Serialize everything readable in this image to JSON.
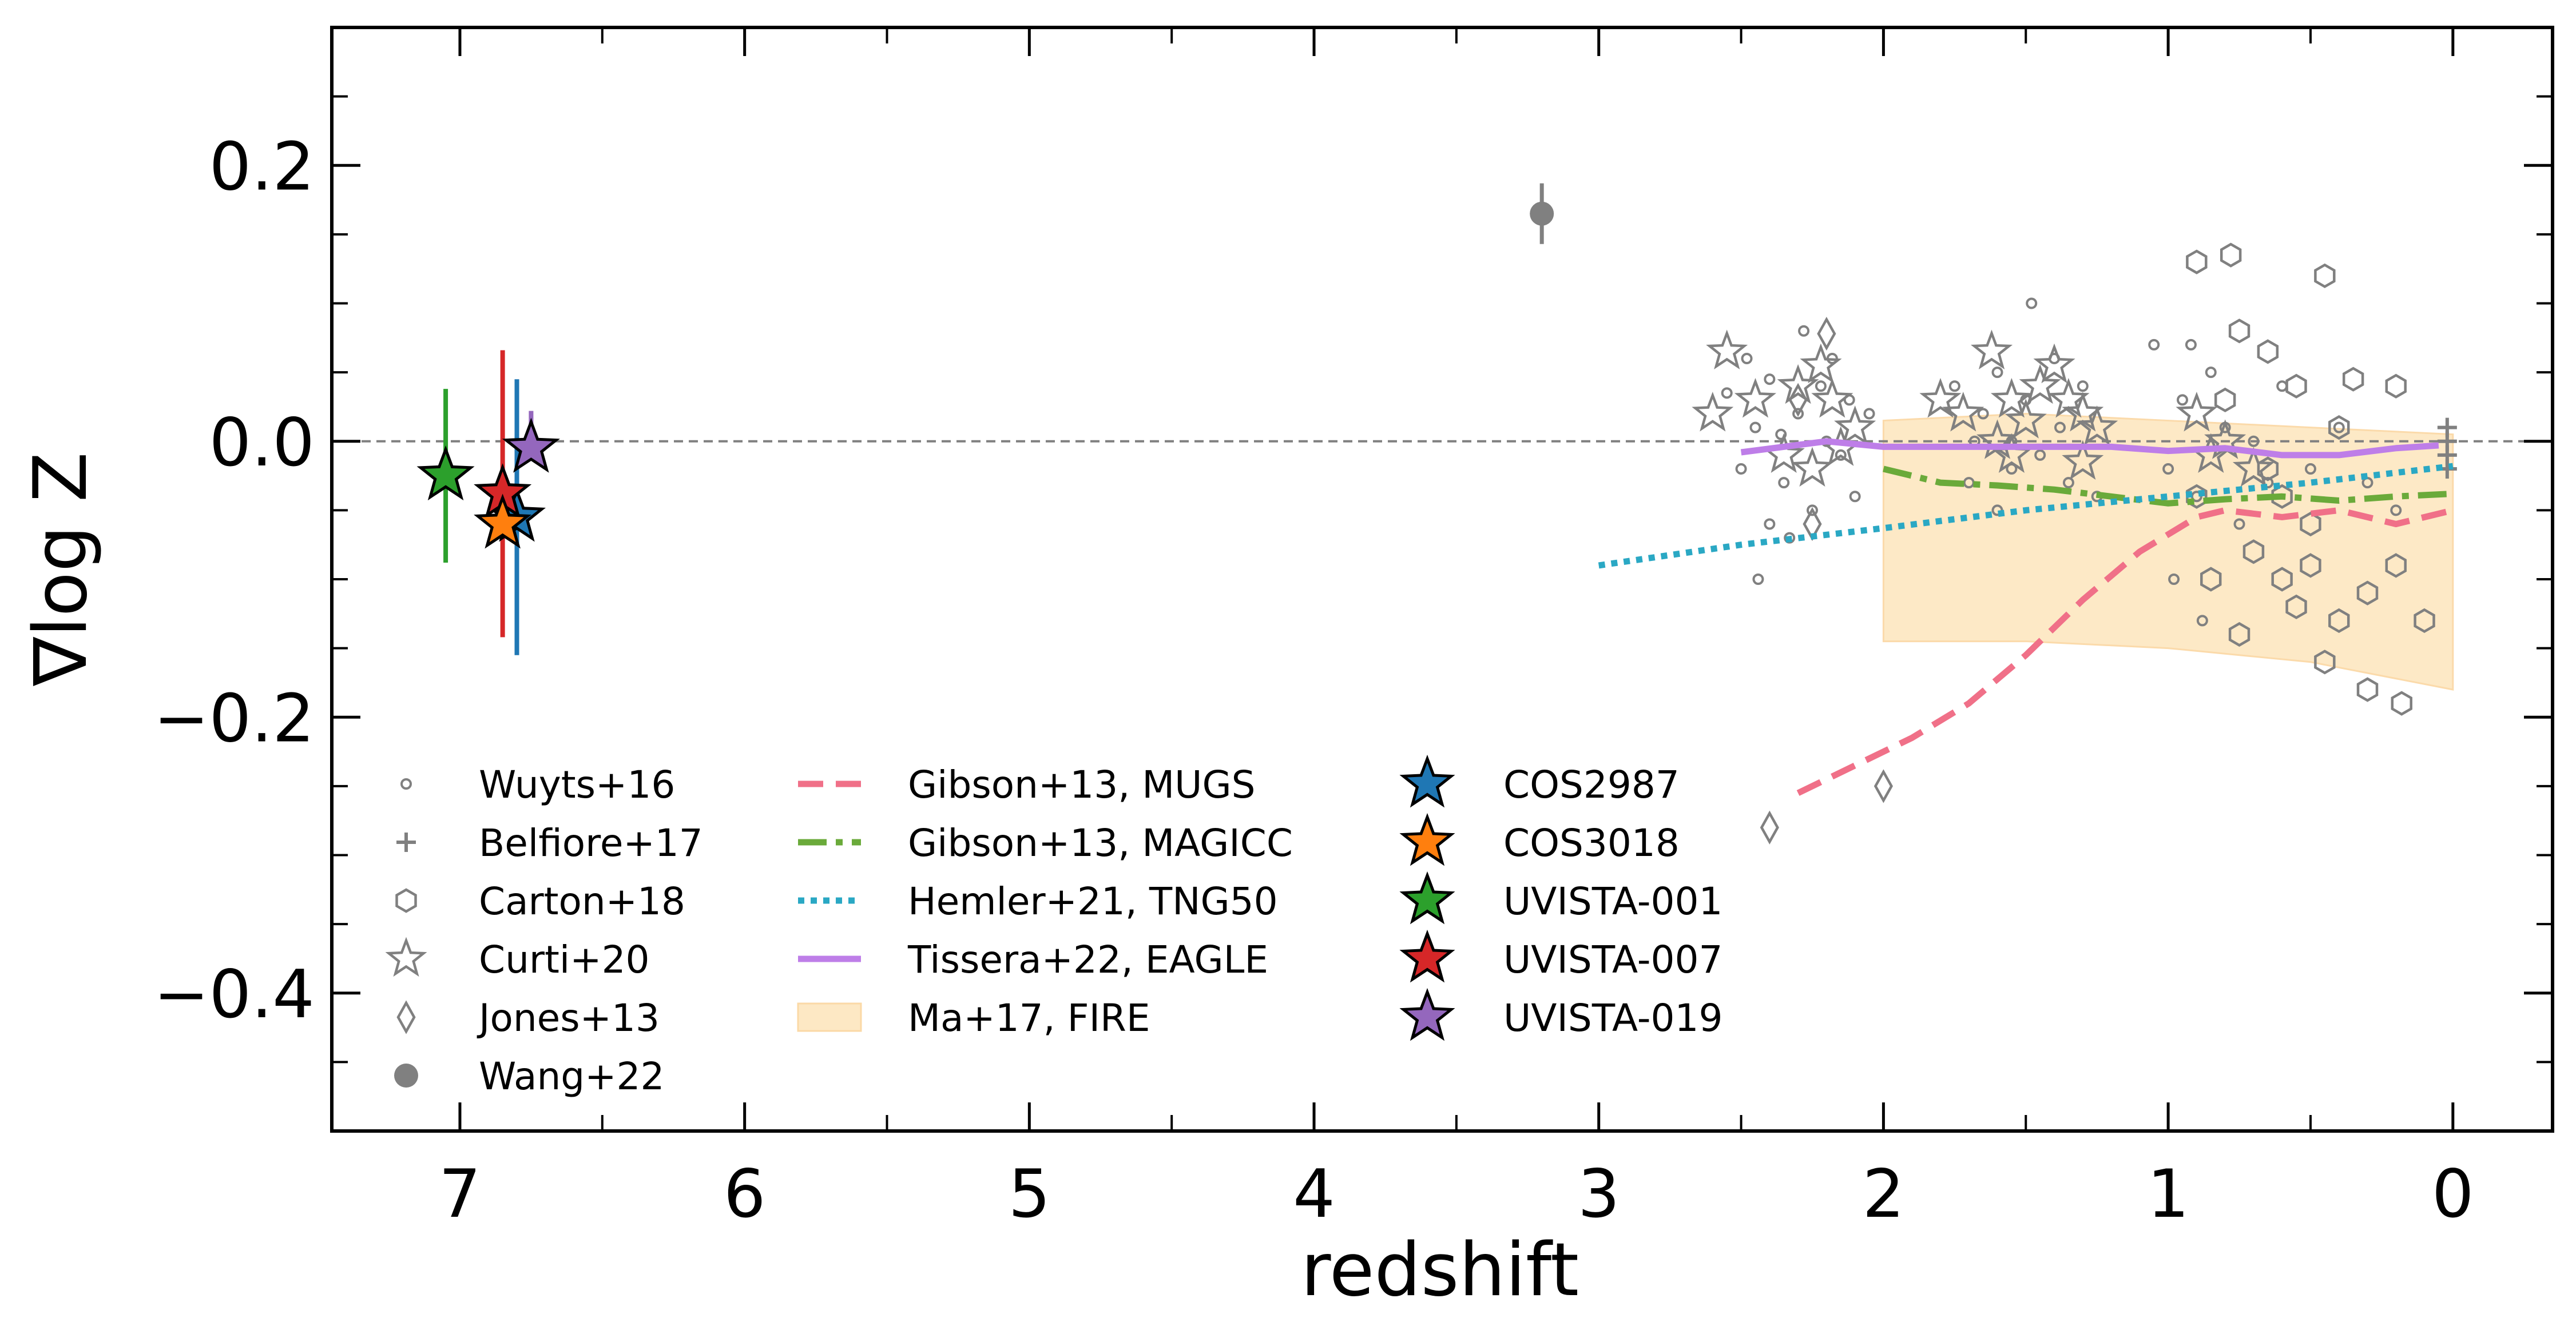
{
  "chart_data": {
    "type": "scatter",
    "title": "",
    "xlabel": "redshift",
    "ylabel": "∇log Z",
    "xlim": [
      7.45,
      -0.35
    ],
    "ylim": [
      -0.5,
      0.3
    ],
    "x_ticks": [
      7,
      6,
      5,
      4,
      3,
      2,
      1,
      0
    ],
    "x_tick_labels": [
      "7",
      "6",
      "5",
      "4",
      "3",
      "2",
      "1",
      "0"
    ],
    "y_ticks": [
      0.2,
      0.0,
      -0.2,
      -0.4
    ],
    "y_tick_labels": [
      "0.2",
      "0.0",
      "−0.2",
      "−0.4"
    ],
    "reference_line": {
      "y": 0.0,
      "style": "dashed",
      "color": "#808080"
    },
    "colors": {
      "literature": "#808080",
      "mugs": "#f07088",
      "magicc": "#6aaa3a",
      "tng50": "#2aa8c4",
      "eagle": "#be7ee8",
      "fire_fill": "#fde8c4",
      "cos2987": "#1f77b4",
      "cos3018": "#ff7f0e",
      "uvista001": "#2ca02c",
      "uvista007": "#d62728",
      "uvista019": "#9467bd"
    },
    "series": [
      {
        "name": "Wuyts+16",
        "kind": "scatter",
        "marker": "small-circle",
        "points": [
          [
            2.55,
            0.035
          ],
          [
            2.5,
            -0.02
          ],
          [
            2.45,
            0.01
          ],
          [
            2.4,
            0.045
          ],
          [
            2.35,
            -0.03
          ],
          [
            2.3,
            0.02
          ],
          [
            2.28,
            0.08
          ],
          [
            2.25,
            -0.05
          ],
          [
            2.2,
            0.0
          ],
          [
            2.18,
            0.06
          ],
          [
            2.15,
            -0.01
          ],
          [
            2.12,
            0.03
          ],
          [
            2.1,
            -0.04
          ],
          [
            2.05,
            0.02
          ],
          [
            2.4,
            -0.06
          ],
          [
            2.33,
            -0.07
          ],
          [
            2.48,
            0.06
          ],
          [
            2.22,
            0.04
          ],
          [
            2.44,
            -0.1
          ],
          [
            2.36,
            0.005
          ],
          [
            1.75,
            0.04
          ],
          [
            1.7,
            -0.03
          ],
          [
            1.65,
            0.02
          ],
          [
            1.6,
            0.05
          ],
          [
            1.55,
            -0.02
          ],
          [
            1.5,
            0.03
          ],
          [
            1.48,
            0.1
          ],
          [
            1.45,
            -0.01
          ],
          [
            1.4,
            0.06
          ],
          [
            1.38,
            0.01
          ],
          [
            1.35,
            -0.03
          ],
          [
            1.3,
            0.04
          ],
          [
            1.25,
            -0.04
          ],
          [
            1.6,
            -0.05
          ],
          [
            1.55,
            0.0
          ],
          [
            1.68,
            0.0
          ],
          [
            1.05,
            0.07
          ],
          [
            1.0,
            -0.02
          ],
          [
            0.95,
            0.03
          ],
          [
            0.9,
            -0.04
          ],
          [
            0.85,
            0.05
          ],
          [
            0.8,
            0.01
          ],
          [
            0.75,
            -0.06
          ],
          [
            0.7,
            0.0
          ],
          [
            0.65,
            -0.03
          ],
          [
            0.6,
            0.04
          ],
          [
            0.5,
            -0.02
          ],
          [
            0.4,
            0.01
          ],
          [
            0.3,
            -0.03
          ],
          [
            0.2,
            -0.05
          ],
          [
            0.92,
            0.07
          ],
          [
            0.98,
            -0.1
          ],
          [
            0.88,
            -0.13
          ]
        ]
      },
      {
        "name": "Belfiore+17",
        "kind": "scatter",
        "marker": "plus",
        "points": [
          [
            0.02,
            0.01
          ],
          [
            0.02,
            0.0
          ],
          [
            0.02,
            -0.01
          ],
          [
            0.02,
            -0.02
          ]
        ]
      },
      {
        "name": "Carton+18",
        "kind": "scatter",
        "marker": "hexagon",
        "points": [
          [
            0.9,
            0.13
          ],
          [
            0.78,
            0.135
          ],
          [
            0.45,
            0.12
          ],
          [
            0.75,
            0.08
          ],
          [
            0.65,
            0.065
          ],
          [
            0.35,
            0.045
          ],
          [
            0.2,
            0.04
          ],
          [
            0.55,
            0.04
          ],
          [
            0.8,
            0.03
          ],
          [
            0.6,
            -0.04
          ],
          [
            0.5,
            -0.06
          ],
          [
            0.7,
            -0.08
          ],
          [
            0.85,
            -0.1
          ],
          [
            0.6,
            -0.1
          ],
          [
            0.55,
            -0.12
          ],
          [
            0.4,
            -0.13
          ],
          [
            0.3,
            -0.11
          ],
          [
            0.2,
            -0.09
          ],
          [
            0.1,
            -0.13
          ],
          [
            0.45,
            -0.16
          ],
          [
            0.3,
            -0.18
          ],
          [
            0.18,
            -0.19
          ],
          [
            0.75,
            -0.14
          ],
          [
            0.9,
            -0.04
          ],
          [
            0.4,
            0.01
          ],
          [
            0.65,
            -0.02
          ],
          [
            0.5,
            -0.09
          ]
        ]
      },
      {
        "name": "Curti+20",
        "kind": "scatter",
        "marker": "open-star",
        "points": [
          [
            2.55,
            0.065
          ],
          [
            2.6,
            0.02
          ],
          [
            2.45,
            0.03
          ],
          [
            2.3,
            0.04
          ],
          [
            2.22,
            0.055
          ],
          [
            2.18,
            0.03
          ],
          [
            2.1,
            0.01
          ],
          [
            2.35,
            -0.01
          ],
          [
            2.25,
            -0.02
          ],
          [
            2.15,
            -0.005
          ],
          [
            1.8,
            0.03
          ],
          [
            1.72,
            0.02
          ],
          [
            1.62,
            0.065
          ],
          [
            1.55,
            0.03
          ],
          [
            1.5,
            0.015
          ],
          [
            1.45,
            0.04
          ],
          [
            1.4,
            0.055
          ],
          [
            1.35,
            0.03
          ],
          [
            1.3,
            0.02
          ],
          [
            1.6,
            0.0
          ],
          [
            1.25,
            0.01
          ],
          [
            1.55,
            -0.01
          ],
          [
            1.3,
            -0.015
          ],
          [
            0.9,
            0.02
          ],
          [
            0.85,
            -0.01
          ],
          [
            0.8,
            0.0
          ],
          [
            0.7,
            -0.02
          ]
        ]
      },
      {
        "name": "Jones+13",
        "kind": "scatter",
        "marker": "thin-diamond",
        "points": [
          [
            2.4,
            -0.28
          ],
          [
            2.0,
            -0.25
          ],
          [
            2.2,
            0.078
          ],
          [
            2.25,
            -0.06
          ],
          [
            2.3,
            0.03
          ]
        ]
      },
      {
        "name": "Wang+22",
        "kind": "errorbar",
        "marker": "filled-circle",
        "points": [
          {
            "x": 3.2,
            "y": 0.165,
            "yerr": 0.022
          }
        ]
      },
      {
        "name": "Gibson+13, MUGS",
        "kind": "line",
        "style": "dashed",
        "x": [
          2.3,
          2.1,
          1.9,
          1.7,
          1.5,
          1.3,
          1.1,
          0.9,
          0.8,
          0.6,
          0.4,
          0.2,
          0.0
        ],
        "y": [
          -0.255,
          -0.235,
          -0.215,
          -0.19,
          -0.155,
          -0.115,
          -0.08,
          -0.055,
          -0.05,
          -0.055,
          -0.05,
          -0.06,
          -0.05
        ]
      },
      {
        "name": "Gibson+13, MAGICC",
        "kind": "line",
        "style": "dashdot",
        "x": [
          2.0,
          1.8,
          1.6,
          1.4,
          1.2,
          1.0,
          0.8,
          0.6,
          0.4,
          0.2,
          0.0
        ],
        "y": [
          -0.02,
          -0.03,
          -0.032,
          -0.035,
          -0.04,
          -0.045,
          -0.042,
          -0.04,
          -0.043,
          -0.04,
          -0.038
        ]
      },
      {
        "name": "Hemler+21, TNG50",
        "kind": "line",
        "style": "dotted",
        "x": [
          3.0,
          2.5,
          2.0,
          1.5,
          1.0,
          0.5,
          0.0
        ],
        "y": [
          -0.09,
          -0.075,
          -0.063,
          -0.05,
          -0.04,
          -0.03,
          -0.018
        ]
      },
      {
        "name": "Tissera+22, EAGLE",
        "kind": "line",
        "style": "solid",
        "x": [
          2.5,
          2.2,
          2.0,
          1.6,
          1.2,
          1.0,
          0.8,
          0.6,
          0.4,
          0.2,
          0.05
        ],
        "y": [
          -0.008,
          0.0,
          -0.004,
          -0.004,
          -0.004,
          -0.007,
          -0.005,
          -0.01,
          -0.01,
          -0.005,
          -0.003
        ]
      },
      {
        "name": "Ma+17, FIRE",
        "kind": "band",
        "x": [
          2.0,
          1.5,
          1.0,
          0.5,
          0.0
        ],
        "y_upper": [
          0.015,
          0.02,
          0.015,
          0.01,
          0.005
        ],
        "y_lower": [
          -0.145,
          -0.145,
          -0.15,
          -0.16,
          -0.18
        ]
      },
      {
        "name": "COS2987",
        "kind": "errorbar",
        "marker": "star",
        "points": [
          {
            "x": 6.8,
            "y": -0.055,
            "yerr_low": 0.1,
            "yerr_high": 0.1
          }
        ]
      },
      {
        "name": "COS3018",
        "kind": "errorbar",
        "marker": "star",
        "points": [
          {
            "x": 6.85,
            "y": -0.06,
            "yerr_low": 0.0,
            "yerr_high": 0.0
          }
        ]
      },
      {
        "name": "UVISTA-001",
        "kind": "errorbar",
        "marker": "star",
        "points": [
          {
            "x": 7.05,
            "y": -0.025,
            "yerr_low": 0.063,
            "yerr_high": 0.063
          }
        ]
      },
      {
        "name": "UVISTA-007",
        "kind": "errorbar",
        "marker": "star",
        "points": [
          {
            "x": 6.85,
            "y": -0.038,
            "yerr_low": 0.104,
            "yerr_high": 0.104
          }
        ]
      },
      {
        "name": "UVISTA-019",
        "kind": "errorbar",
        "marker": "star",
        "points": [
          {
            "x": 6.75,
            "y": -0.005,
            "yerr_low": 0.0,
            "yerr_high": 0.027
          }
        ]
      }
    ],
    "legend": {
      "placement": "lower-left",
      "columns": [
        [
          "Wuyts+16",
          "Belfiore+17",
          "Carton+18",
          "Curti+20",
          "Jones+13",
          "Wang+22"
        ],
        [
          "Gibson+13, MUGS",
          "Gibson+13, MAGICC",
          "Hemler+21, TNG50",
          "Tissera+22, EAGLE",
          "Ma+17, FIRE"
        ],
        [
          "COS2987",
          "COS3018",
          "UVISTA-001",
          "UVISTA-007",
          "UVISTA-019"
        ]
      ]
    }
  }
}
